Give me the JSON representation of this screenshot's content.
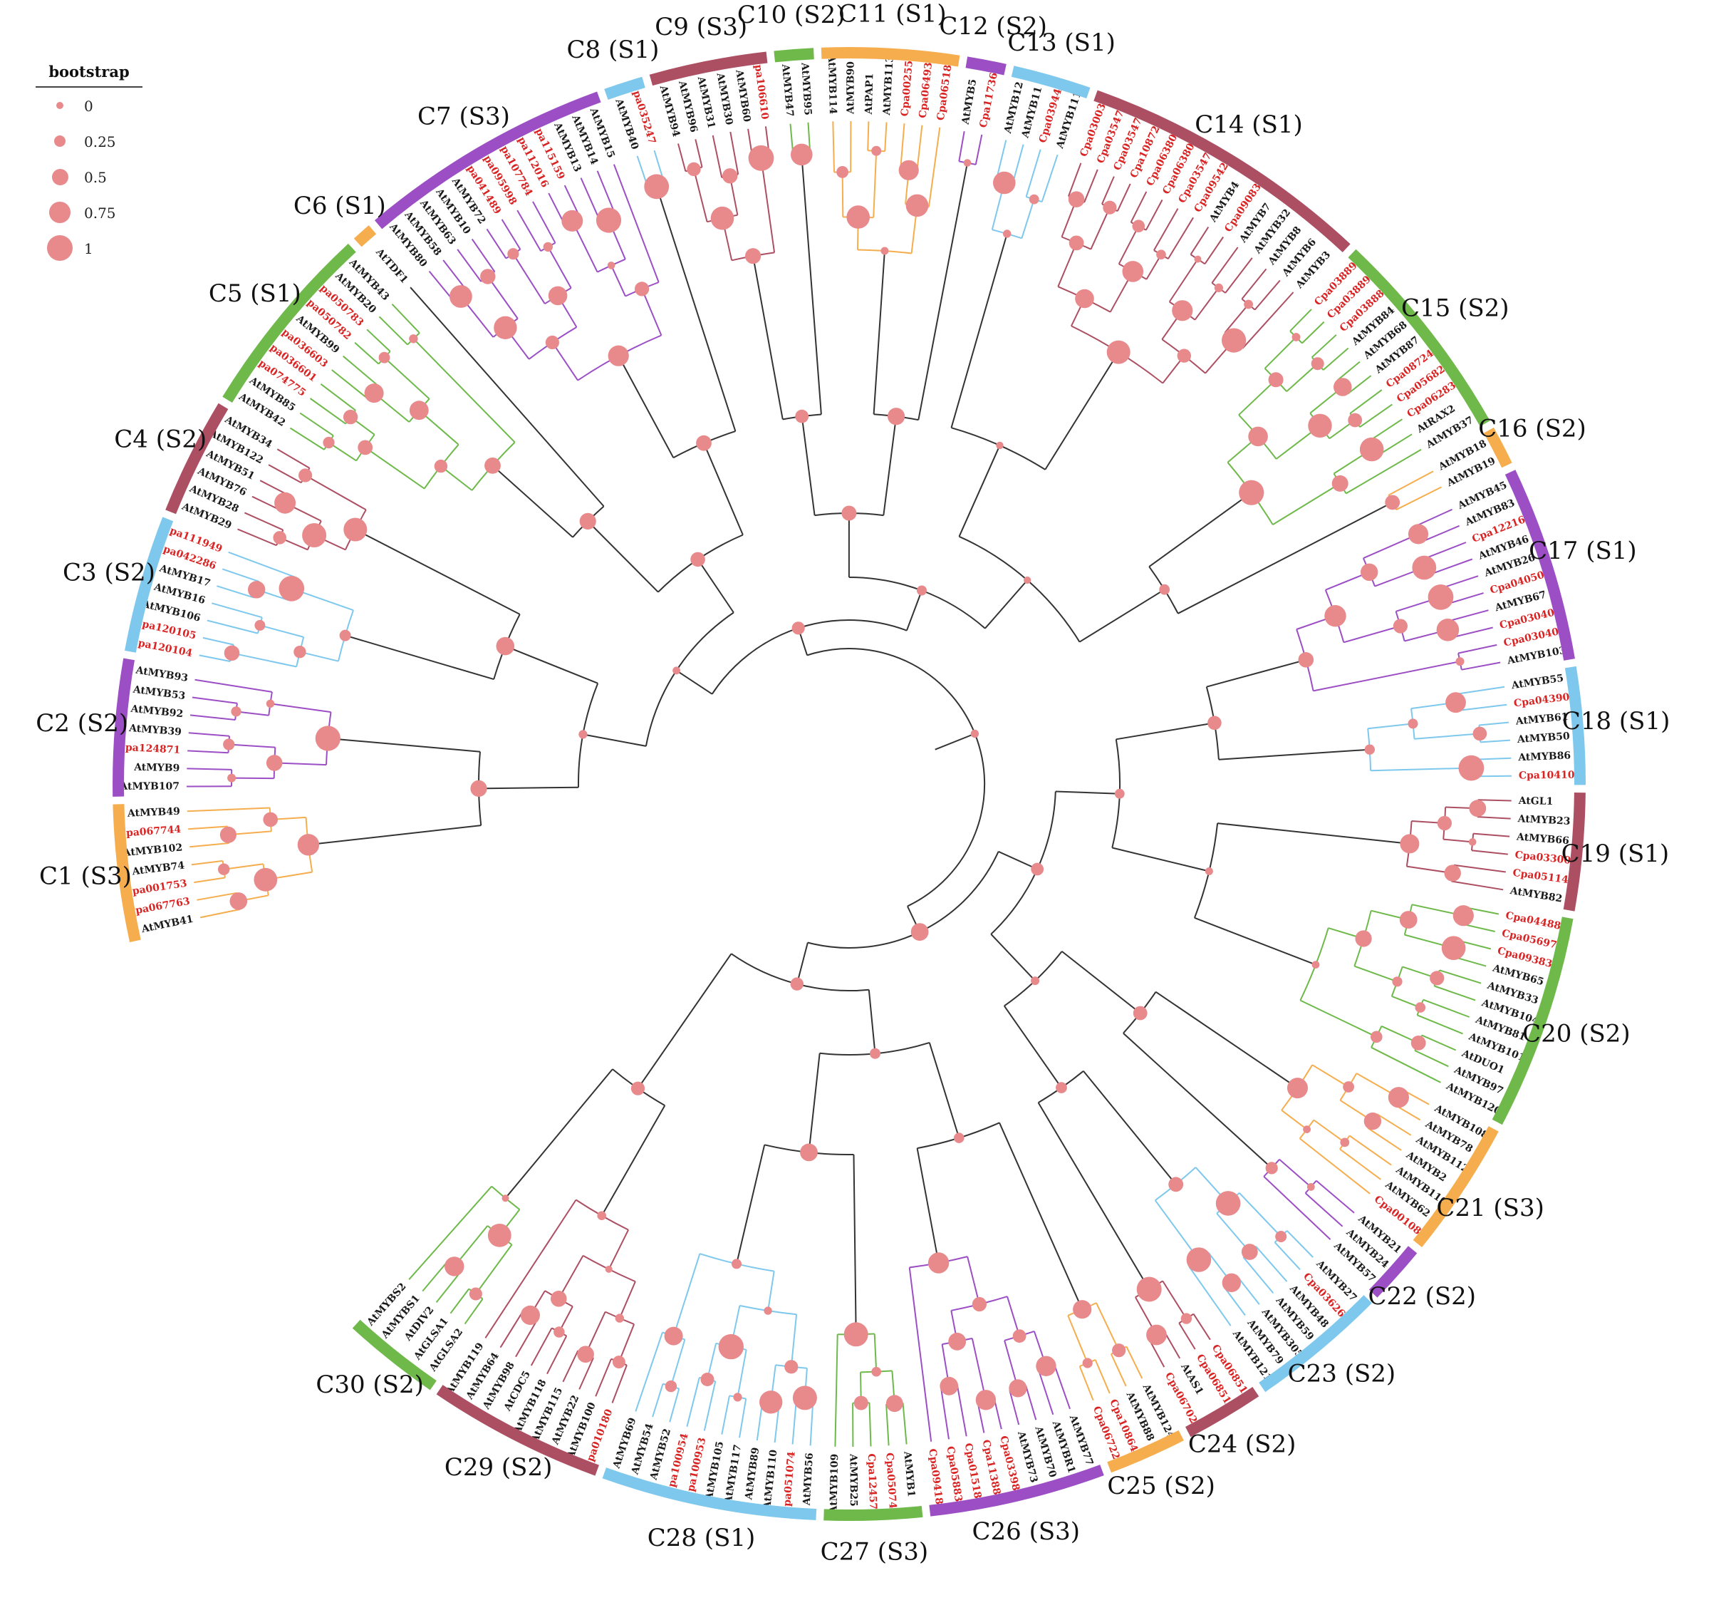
{
  "legend": {
    "title": "bootstrap",
    "items": [
      {
        "label": "0",
        "value": 0
      },
      {
        "label": "0.25",
        "value": 0.25
      },
      {
        "label": "0.5",
        "value": 0.5
      },
      {
        "label": "0.75",
        "value": 0.75
      },
      {
        "label": "1",
        "value": 1
      }
    ]
  },
  "colors": {
    "orange": "#f5ad4d",
    "purple": "#9c4fc5",
    "blue": "#7ec8ee",
    "red": "#ad4f62",
    "green": "#6eb94a",
    "node": "#e8898b",
    "cpa_label": "#d92424",
    "at_label": "#1a1a1a",
    "backbone": "#333333"
  },
  "clades": [
    {
      "name": "C1 (S3)",
      "color": "orange",
      "leaves": [
        "AtMYB41",
        "Cpa067763",
        "Cpa001753",
        "AtMYB74",
        "AtMYB102",
        "Cpa067744",
        "AtMYB49"
      ]
    },
    {
      "name": "C2 (S2)",
      "color": "purple",
      "leaves": [
        "AtMYB107",
        "AtMYB9",
        "Cpa124871",
        "AtMYB39",
        "AtMYB92",
        "AtMYB53",
        "AtMYB93"
      ]
    },
    {
      "name": "C3 (S2)",
      "color": "blue",
      "leaves": [
        "Cpa120104",
        "Cpa120105",
        "AtMYB106",
        "AtMYB16",
        "AtMYB17",
        "Cpa042286",
        "Cpa111949"
      ]
    },
    {
      "name": "C4 (S2)",
      "color": "red",
      "leaves": [
        "AtMYB29",
        "AtMYB28",
        "AtMYB76",
        "AtMYB51",
        "AtMYB122",
        "AtMYB34"
      ]
    },
    {
      "name": "C5 (S1)",
      "color": "green",
      "leaves": [
        "AtMYB42",
        "AtMYB85",
        "Cpa074775",
        "Cpa036601",
        "Cpa036603",
        "AtMYB99",
        "Cpa050782",
        "Cpa050783",
        "AtMYB20",
        "AtMYB43"
      ]
    },
    {
      "name": "C6 (S1)",
      "color": "orange",
      "leaves": [
        "AtTDF1"
      ]
    },
    {
      "name": "C7 (S3)",
      "color": "purple",
      "leaves": [
        "AtMYB80",
        "AtMYB58",
        "AtMYB63",
        "AtMYB10",
        "AtMYB72",
        "Cpa041489",
        "Cpa095998",
        "Cpa107784",
        "Cpa112016",
        "Cpa115159",
        "AtMYB13",
        "AtMYB14",
        "AtMYB15"
      ]
    },
    {
      "name": "C8 (S1)",
      "color": "blue",
      "leaves": [
        "AtMYB40",
        "Cpa035247"
      ]
    },
    {
      "name": "C9 (S3)",
      "color": "red",
      "leaves": [
        "AtMYB94",
        "AtMYB96",
        "AtMYB31",
        "AtMYB30",
        "AtMYB60",
        "Cpa106610"
      ]
    },
    {
      "name": "C10 (S2)",
      "color": "green",
      "leaves": [
        "AtMYB47",
        "AtMYB95"
      ]
    },
    {
      "name": "C11 (S1)",
      "color": "orange",
      "leaves": [
        "AtMYB114",
        "AtMYB90",
        "AtPAP1",
        "AtMYB113",
        "Cpa002553",
        "Cpa064937",
        "Cpa065180"
      ]
    },
    {
      "name": "C12 (S2)",
      "color": "purple",
      "leaves": [
        "AtMYB5",
        "Cpa117362"
      ]
    },
    {
      "name": "C13 (S1)",
      "color": "blue",
      "leaves": [
        "AtMYB12",
        "AtMYB11",
        "Cpa039447",
        "AtMYB111"
      ]
    },
    {
      "name": "C14 (S1)",
      "color": "red",
      "leaves": [
        "Cpa030036",
        "Cpa035470",
        "Cpa035471",
        "Cpa108726",
        "Cpa063804",
        "Cpa063805",
        "Cpa035472",
        "Cpa095422",
        "AtMYB4",
        "Cpa090838",
        "AtMYB7",
        "AtMYB32",
        "AtMYB8",
        "AtMYB6",
        "AtMYB3"
      ]
    },
    {
      "name": "C15 (S2)",
      "color": "green",
      "leaves": [
        "Cpa038890",
        "Cpa038891",
        "Cpa038889",
        "AtMYB84",
        "AtMYB68",
        "AtMYB87",
        "Cpa087248",
        "Cpa056821",
        "Cpa062832",
        "AtRAX2",
        "AtMYB37"
      ]
    },
    {
      "name": "C16 (S2)",
      "color": "orange",
      "leaves": [
        "AtMYB18",
        "AtMYB19"
      ]
    },
    {
      "name": "C17 (S1)",
      "color": "purple",
      "leaves": [
        "AtMYB45",
        "AtMYB83",
        "Cpa122160",
        "AtMYB46",
        "AtMYB26",
        "Cpa040502",
        "AtMYB67",
        "Cpa030403",
        "Cpa030404",
        "AtMYB103"
      ]
    },
    {
      "name": "C18 (S1)",
      "color": "blue",
      "leaves": [
        "AtMYB55",
        "Cpa043908",
        "AtMYB61",
        "AtMYB50",
        "AtMYB86",
        "Cpa104103"
      ]
    },
    {
      "name": "C19 (S1)",
      "color": "red",
      "leaves": [
        "AtGL1",
        "AtMYB23",
        "AtMYB66",
        "Cpa033006",
        "Cpa051147",
        "AtMYB82"
      ]
    },
    {
      "name": "C20 (S2)",
      "color": "green",
      "leaves": [
        "Cpa044885",
        "Cpa056977",
        "Cpa093839",
        "AtMYB65",
        "AtMYB33",
        "AtMYB104",
        "AtMYB81",
        "AtMYB101",
        "AtDUO1",
        "AtMYB97",
        "AtMYB120"
      ]
    },
    {
      "name": "C21 (S3)",
      "color": "orange",
      "leaves": [
        "AtMYB108",
        "AtMYB78",
        "AtMYB112",
        "AtMYB2",
        "AtMYB116",
        "AtMYB62",
        "Cpa001080"
      ]
    },
    {
      "name": "C22 (S2)",
      "color": "purple",
      "leaves": [
        "AtMYB21",
        "AtMYB24",
        "AtMYB57"
      ]
    },
    {
      "name": "C23 (S2)",
      "color": "blue",
      "leaves": [
        "AtMYB27",
        "Cpa036268",
        "AtMYB48",
        "AtMYB59",
        "AtMYB305",
        "AtMYB79",
        "AtMYB121"
      ]
    },
    {
      "name": "C24 (S2)",
      "color": "red",
      "leaves": [
        "Cpa068515",
        "Cpa068516",
        "AtAS1",
        "Cpa067029"
      ]
    },
    {
      "name": "C25 (S2)",
      "color": "orange",
      "leaves": [
        "AtMYB124",
        "AtMYB88",
        "Cpa108647",
        "Cpa067221"
      ]
    },
    {
      "name": "C26 (S3)",
      "color": "purple",
      "leaves": [
        "AtMYB77",
        "AtMYBR1",
        "AtMYB70",
        "AtMYB73",
        "Cpa033987",
        "Cpa113885",
        "Cpa015189",
        "Cpa058837",
        "Cpa094184"
      ]
    },
    {
      "name": "C27 (S3)",
      "color": "green",
      "leaves": [
        "AtMYB1",
        "Cpa050749",
        "Cpa124579",
        "AtMYB25",
        "AtMYB109"
      ]
    },
    {
      "name": "C28 (S1)",
      "color": "blue",
      "leaves": [
        "AtMYB56",
        "Cpa051074",
        "AtMYB110",
        "AtMYB89",
        "AtMYB117",
        "AtMYB105",
        "Cpa100953",
        "Cpa100954",
        "AtMYB52",
        "AtMYB54",
        "AtMYB69"
      ]
    },
    {
      "name": "C29 (S2)",
      "color": "red",
      "leaves": [
        "Cpa010180",
        "AtMYB100",
        "AtMYB22",
        "AtMYB115",
        "AtMYB118",
        "AtCDC5",
        "AtMYB98",
        "AtMYB64",
        "AtMYB119"
      ]
    },
    {
      "name": "C30 (S2)",
      "color": "green",
      "leaves": [
        "AtGLSA2",
        "AtGLSA1",
        "AtDIV2",
        "AtMYBS1",
        "AtMYBS2"
      ]
    }
  ]
}
